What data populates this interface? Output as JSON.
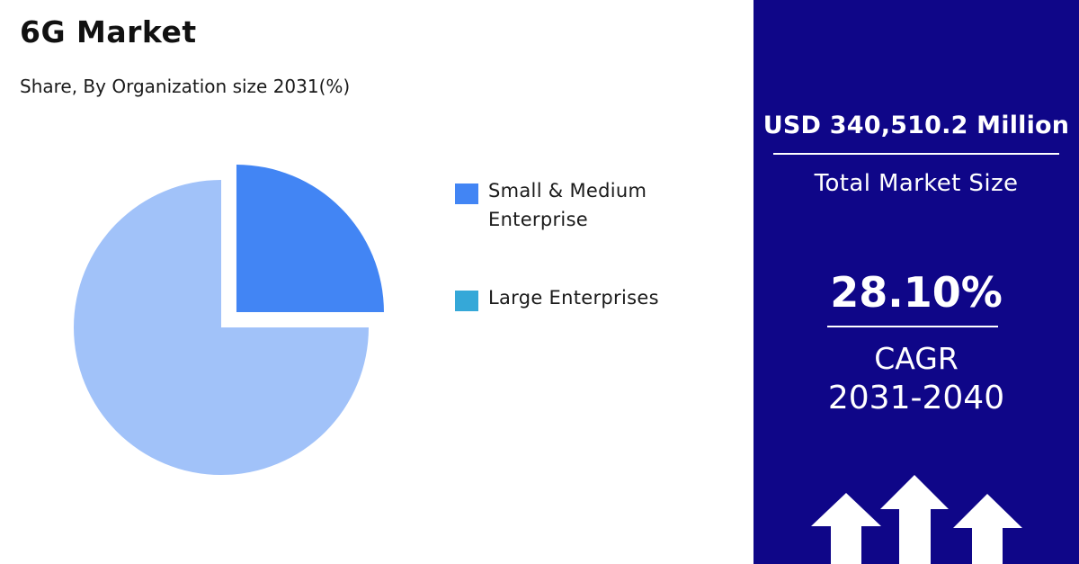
{
  "header": {
    "title": "6G Market",
    "subtitle": "Share, By Organization size 2031(%)"
  },
  "chart_data": {
    "type": "pie",
    "title": "6G Market",
    "subtitle": "Share, By Organization size 2031(%)",
    "categories": [
      "Small & Medium Enterprise",
      "Large Enterprises"
    ],
    "values": [
      25,
      75
    ],
    "slice_colors": [
      "#4285f4",
      "#a1c2f9"
    ],
    "legend": [
      {
        "label": "Small & Medium Enterprise",
        "color": "#4285f4"
      },
      {
        "label": "Large Enterprises",
        "color": "#35a8d8"
      }
    ],
    "legend_placement": "right",
    "exploded_slice": "Small & Medium Enterprise"
  },
  "stats_panel": {
    "background": "#0f0688",
    "market_size": "USD 340,510.2 Million",
    "market_size_label": "Total Market Size",
    "cagr_value": "28.10%",
    "cagr_label": "CAGR",
    "cagr_period": "2031-2040",
    "arrow_icon": "up-arrow-icon"
  }
}
